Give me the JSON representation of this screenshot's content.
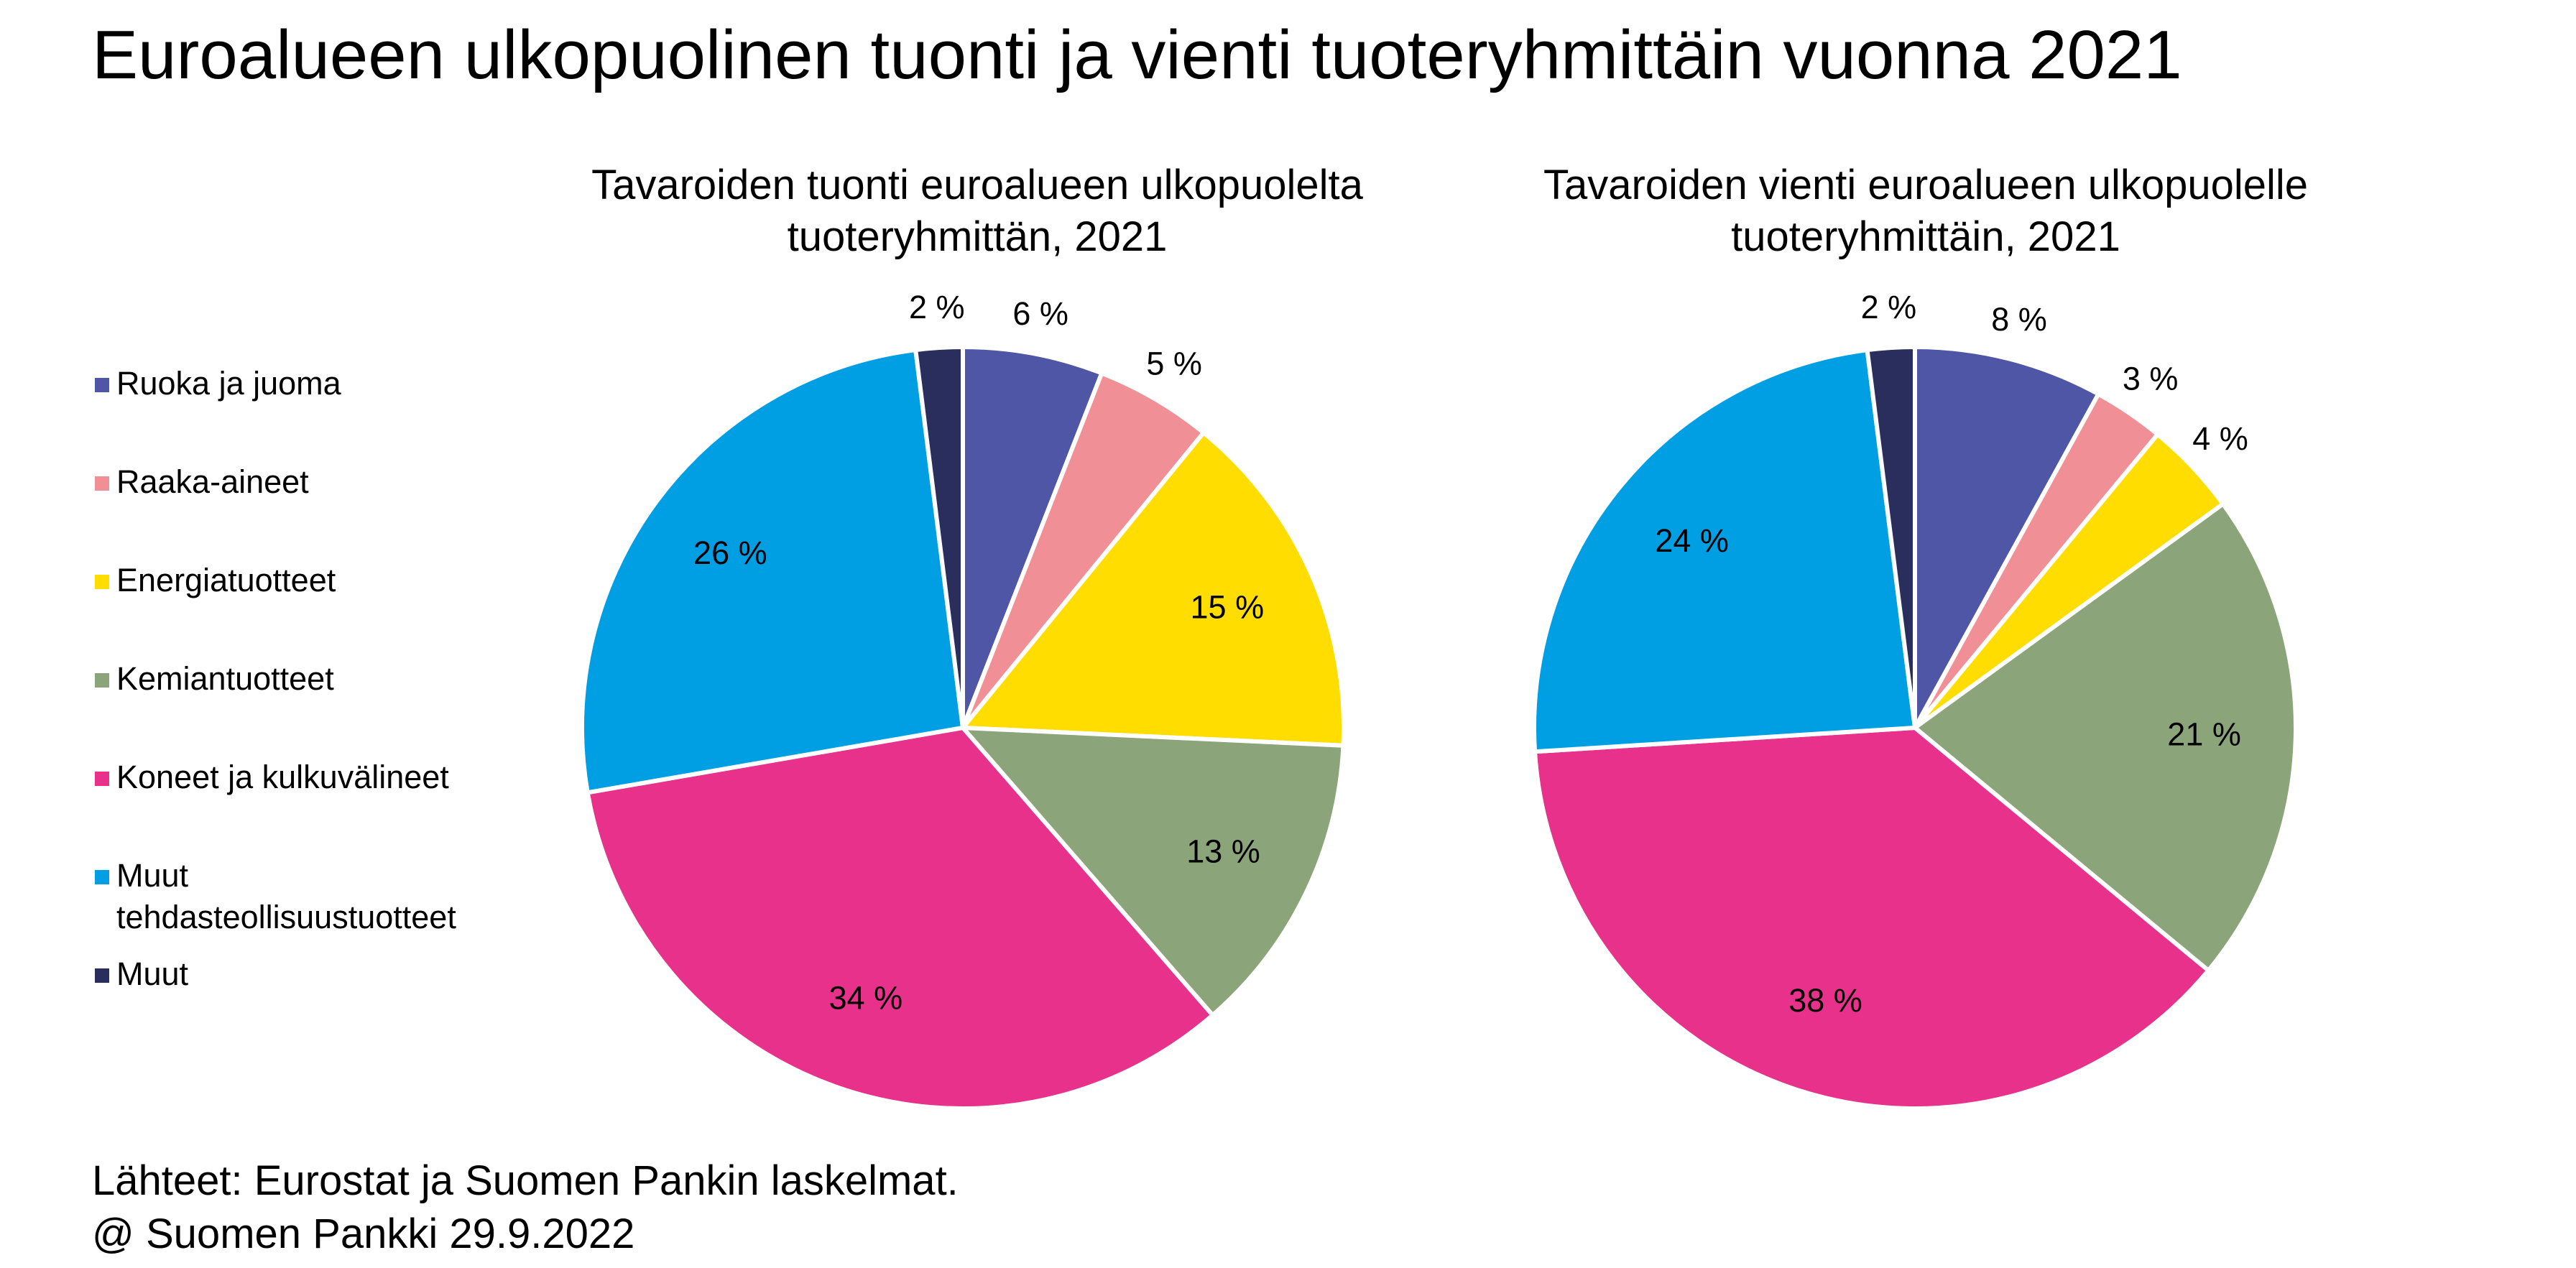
{
  "title": "Euroalueen ulkopuolinen tuonti ja vienti tuoteryhmittäin vuonna 2021",
  "footer": {
    "line1": "Lähteet: Eurostat ja Suomen Pankin laskelmat.",
    "line2": "@ Suomen Pankki 29.9.2022"
  },
  "legend": [
    {
      "label": "Ruoka ja juoma",
      "color": "#4F56A6"
    },
    {
      "label": "Raaka-aineet",
      "color": "#F09096"
    },
    {
      "label": "Energiatuotteet",
      "color": "#FFDD00"
    },
    {
      "label": "Kemiantuotteet",
      "color": "#8CA47A"
    },
    {
      "label": "Koneet ja kulkuvälineet",
      "color": "#E8318A"
    },
    {
      "label": "Muut tehdasteollisuustuotteet",
      "label_lines": [
        "Muut",
        "tehdasteollisuustuotteet"
      ],
      "color": "#009FE3"
    },
    {
      "label": "Muut",
      "color": "#2A2E5C"
    }
  ],
  "chart_data": [
    {
      "type": "pie",
      "title": "Tavaroiden tuonti euroalueen ulkopuolelta tuoteryhmittän, 2021",
      "title_lines": [
        "Tavaroiden tuonti euroalueen ulkopuolelta",
        "tuoteryhmittän, 2021"
      ],
      "categories": [
        "Ruoka ja juoma",
        "Raaka-aineet",
        "Energiatuotteet",
        "Kemiantuotteet",
        "Koneet ja kulkuvälineet",
        "Muut tehdasteollisuustuotteet",
        "Muut"
      ],
      "values": [
        6,
        5,
        15,
        13,
        34,
        26,
        2
      ],
      "data_labels": [
        "6 %",
        "5 %",
        "15 %",
        "13 %",
        "34 %",
        "26 %",
        "2 %"
      ]
    },
    {
      "type": "pie",
      "title": "Tavaroiden vienti euroalueen ulkopuolelle tuoteryhmittäin, 2021",
      "title_lines": [
        "Tavaroiden vienti euroalueen ulkopuolelle",
        "tuoteryhmittäin, 2021"
      ],
      "categories": [
        "Ruoka ja juoma",
        "Raaka-aineet",
        "Energiatuotteet",
        "Kemiantuotteet",
        "Koneet ja kulkuvälineet",
        "Muut tehdasteollisuustuotteet",
        "Muut"
      ],
      "values": [
        8,
        3,
        4,
        21,
        38,
        24,
        2
      ],
      "data_labels": [
        "8 %",
        "3 %",
        "4 %",
        "21 %",
        "38 %",
        "24 %",
        "2 %"
      ]
    }
  ]
}
